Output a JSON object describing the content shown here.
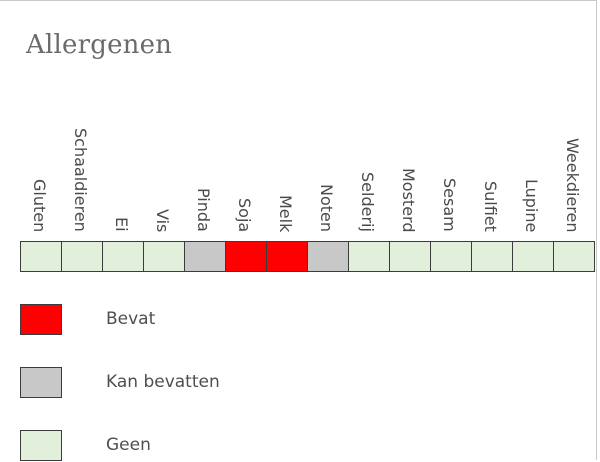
{
  "title": "Allergenen",
  "colors": {
    "contains": "#ff0000",
    "may_contain": "#c8c8c8",
    "none": "#e2efda"
  },
  "allergens": [
    {
      "name": "Gluten",
      "status": "none"
    },
    {
      "name": "Schaaldieren",
      "status": "none"
    },
    {
      "name": "Ei",
      "status": "none"
    },
    {
      "name": "Vis",
      "status": "none"
    },
    {
      "name": "Pinda",
      "status": "may_contain"
    },
    {
      "name": "Soja",
      "status": "contains"
    },
    {
      "name": "Melk",
      "status": "contains"
    },
    {
      "name": "Noten",
      "status": "may_contain"
    },
    {
      "name": "Selderij",
      "status": "none"
    },
    {
      "name": "Mosterd",
      "status": "none"
    },
    {
      "name": "Sesam",
      "status": "none"
    },
    {
      "name": "Sulfiet",
      "status": "none"
    },
    {
      "name": "Lupine",
      "status": "none"
    },
    {
      "name": "Weekdieren",
      "status": "none"
    }
  ],
  "legend": [
    {
      "key": "contains",
      "label": "Bevat"
    },
    {
      "key": "may_contain",
      "label": "Kan bevatten"
    },
    {
      "key": "none",
      "label": "Geen"
    }
  ]
}
